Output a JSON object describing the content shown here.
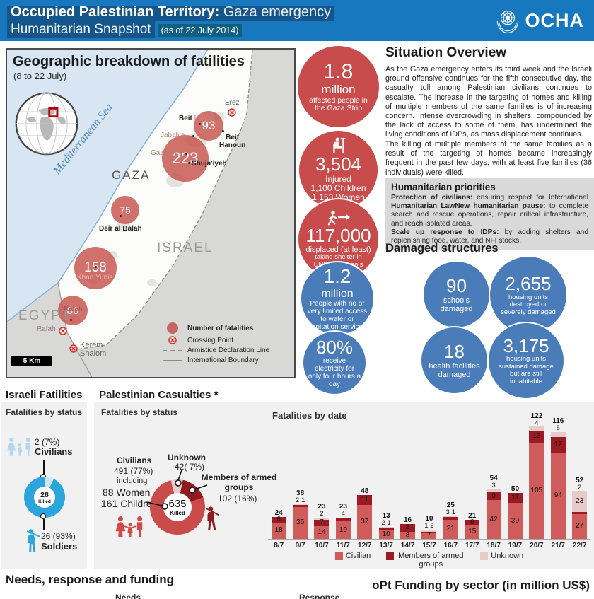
{
  "header": {
    "title_part1": "Occupied Palestinian Territory:",
    "title_part2": " Gaza emergency",
    "title_line2": "Humanitarian Snapshot",
    "title_date": "(as of 22 July 2014)",
    "org": "OCHA"
  },
  "map": {
    "title": "Geographic breakdown of fatilities",
    "subtitle": "(8 to 22 July)",
    "sea": "Mediterranean Sea",
    "regions": {
      "gaza": "GAZA",
      "israel": "ISRAEL",
      "egypt": "EGYPT"
    },
    "labels": {
      "erez": "Erez",
      "beit_lahiya_1": "Beit",
      "beit_lahiya_2": " Lahiya",
      "jabalya": "Jabalya",
      "gaza_city": "Gaza City",
      "shujaiyeh": "Shuja'iyeh",
      "beit_hanoun_1": "Beit",
      "beit_hanoun_2": "Hanoun",
      "deir_al_balah": "Deir al Balah",
      "khan_yunis": "Khan Yunis",
      "rafah_area": "Rafah",
      "rafah_crossing": "Rafah",
      "kerem_1": "Kerem",
      "kerem_2": "Shalom"
    },
    "fatality_circles": [
      {
        "area": "Beit Lahiya",
        "value": "93"
      },
      {
        "area": "Gaza City / Shuja'iyeh",
        "value": "223"
      },
      {
        "area": "Deir al Balah",
        "value": "75"
      },
      {
        "area": "Khan Yunis",
        "value": "158"
      },
      {
        "area": "Rafah",
        "value": "86"
      }
    ],
    "legend": {
      "fatalities": "Number of fatalities",
      "crossing": "Crossing Point",
      "armistice": "Armistice Declaration Line",
      "boundary": "International Boundary"
    },
    "scale_label": "5 Km"
  },
  "stats": {
    "affected": {
      "value": "1.8",
      "unit": "million",
      "desc": "affected people in the Gaza Strip"
    },
    "injured": {
      "value": "3,504",
      "label": "Injured",
      "line1": "1,100 Children",
      "line2": "1,153 Women"
    },
    "displaced": {
      "value": "117,000",
      "line1": "displaced  (at least)",
      "line2": "taking shelter in",
      "line3": "UNRWA schools"
    },
    "water": {
      "value": "1.2",
      "unit": "million",
      "desc": "People with no or very limited access to water or sanitation services"
    },
    "electricity": {
      "value": "80%",
      "desc": "receive electricity for only four hours a day"
    }
  },
  "situation": {
    "title": "Situation Overview",
    "p1": "As the Gaza emergency enters its third week and the Israeli ground offensive continues for the fifth consecutive day, the casualty toll among Palestinian civilians continues to escalate. The increase in the targeting of homes and killing of multiple members of the same families is of increasing concern. Intense overcrowding in shelters, compounded by the lack of access to some of them, has undermined the living conditions of IDPs, as mass displacement continues.",
    "p2": "The killing of multiple members of the same families as a result of the targeting of homes became increasingly frequent in the past few days, with at least five families (36 individuals) were killed."
  },
  "priorities": {
    "title": "Humanitarian priorities",
    "seg1_bold": "Protection of civilians:",
    "seg1_text": " ensuring respect for International ",
    "seg2_bold": "Humanitarian LawNew humanitarian pause:",
    "seg2_text": " to complete search and rescue operations, repair critical infrastructure, and reach isolated areas.",
    "seg3_bold": "Scale up response to IDPs:",
    "seg3_text": " by adding shelters and replenishing food, water, and NFI stocks."
  },
  "damaged": {
    "title": "Damaged structures",
    "items": [
      {
        "value": "90",
        "label": "schools damaged"
      },
      {
        "value": "2,655",
        "label": "housing units destroyed or severely damaged"
      },
      {
        "value": "18",
        "label": "health facilities damaged"
      },
      {
        "value": "3,175",
        "label": "housing units sustained damage but are still inhabitable"
      }
    ]
  },
  "israeli": {
    "title": "Israeli Fatilities",
    "subtitle": "Fatalities by status",
    "civilians_value": "2 (7%)",
    "civilians_label": "Civilians",
    "killed_value": "28",
    "killed_label": "Killed",
    "soldiers_value": "26 (93%)",
    "soldiers_label": "Soldiers"
  },
  "palestinian": {
    "title": "Palestinian Casualties *",
    "subtitle": "Fatalities by status",
    "civilians_label": "Civilians",
    "civilians_value": "491 (77%)",
    "including": "including",
    "women": "88 Women",
    "children": "161 Children",
    "unknown_label": "Unknown",
    "unknown_value": "42( 7%)",
    "armed_label_1": "Members of armed",
    "armed_label_2": "groups",
    "armed_value": "102 (16%)",
    "killed_value": "635",
    "killed_label": "Killed"
  },
  "chart_data": [
    {
      "type": "bar",
      "stacked": true,
      "title": "Fatalities by date",
      "categories": [
        "8/7",
        "9/7",
        "10/7",
        "11/7",
        "12/7",
        "13/7",
        "14/7",
        "15/7",
        "16/7",
        "17/7",
        "18/7",
        "19/7",
        "20/7",
        "21/7",
        "22/7"
      ],
      "series": [
        {
          "name": "Civilian",
          "color": "#d05b5b",
          "values": [
            18,
            35,
            14,
            19,
            37,
            10,
            8,
            7,
            21,
            15,
            42,
            39,
            105,
            94,
            27
          ]
        },
        {
          "name": "Members of armed groups",
          "color": "#9c1a23",
          "values": [
            6,
            2,
            7,
            4,
            11,
            2,
            8,
            1,
            3,
            6,
            9,
            11,
            13,
            17,
            2
          ]
        },
        {
          "name": "Unknown",
          "color": "#e8caca",
          "values": [
            0,
            1,
            2,
            0,
            0,
            1,
            0,
            2,
            1,
            0,
            3,
            0,
            4,
            5,
            23
          ]
        }
      ],
      "totals": [
        24,
        38,
        23,
        23,
        48,
        13,
        16,
        10,
        25,
        21,
        54,
        50,
        122,
        116,
        52
      ],
      "ylim": [
        0,
        130
      ],
      "grid": false,
      "legend_position": "bottom"
    },
    {
      "type": "pie",
      "title": "Israeli fatalities by status",
      "labels": [
        "Civilians",
        "Soldiers"
      ],
      "values": [
        2,
        26
      ],
      "center_total": 28
    },
    {
      "type": "pie",
      "title": "Palestinian fatalities by status",
      "labels": [
        "Civilians",
        "Members of armed groups",
        "Unknown"
      ],
      "values": [
        491,
        102,
        42
      ],
      "center_total": 635
    }
  ],
  "footer": {
    "title": "Needs, response and funding",
    "right_title": "oPt Funding by sector (in million US$)",
    "col_needs": "Needs",
    "col_response": "Response"
  },
  "colors": {
    "header_blue": "#1878bf",
    "highlight_blue": "#14568c",
    "stat_red": "#c84c4b",
    "stat_blue": "#4a7cba",
    "israeli_blue": "#2ba5dc",
    "civilian_bar": "#d05b5b",
    "armed_bar": "#9c1a23",
    "unknown_bar": "#e8caca"
  }
}
